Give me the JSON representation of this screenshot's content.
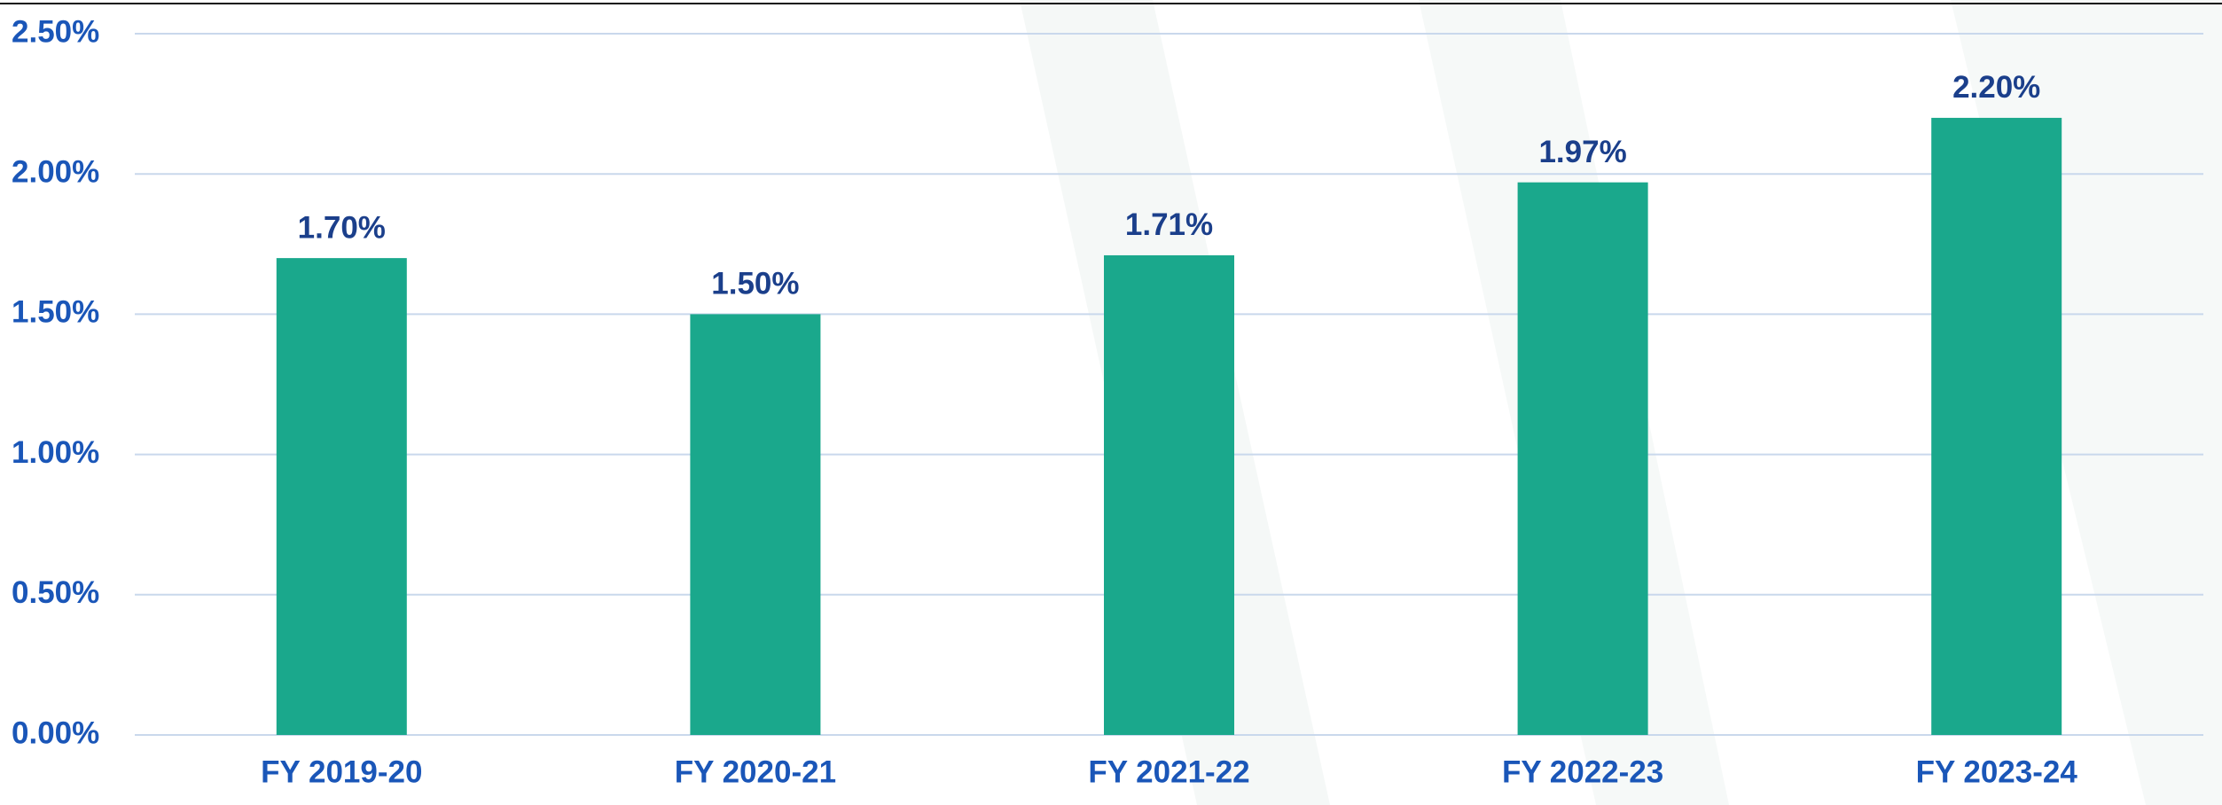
{
  "chart_data": {
    "type": "bar",
    "categories": [
      "FY 2019-20",
      "FY 2020-21",
      "FY 2021-22",
      "FY 2022-23",
      "FY 2023-24"
    ],
    "values": [
      1.7,
      1.5,
      1.71,
      1.97,
      2.2
    ],
    "value_labels": [
      "1.70%",
      "1.50%",
      "1.71%",
      "1.97%",
      "2.20%"
    ],
    "color": "#1aa88c",
    "ylim": [
      0,
      2.5
    ],
    "yticks": [
      {
        "value": 0,
        "label": "0.00%"
      },
      {
        "value": 0.5,
        "label": "0.50%"
      },
      {
        "value": 1,
        "label": "1.00%"
      },
      {
        "value": 1.5,
        "label": "1.50%"
      },
      {
        "value": 2,
        "label": "2.00%"
      },
      {
        "value": 2.5,
        "label": "2.50%"
      }
    ],
    "grid": true
  }
}
